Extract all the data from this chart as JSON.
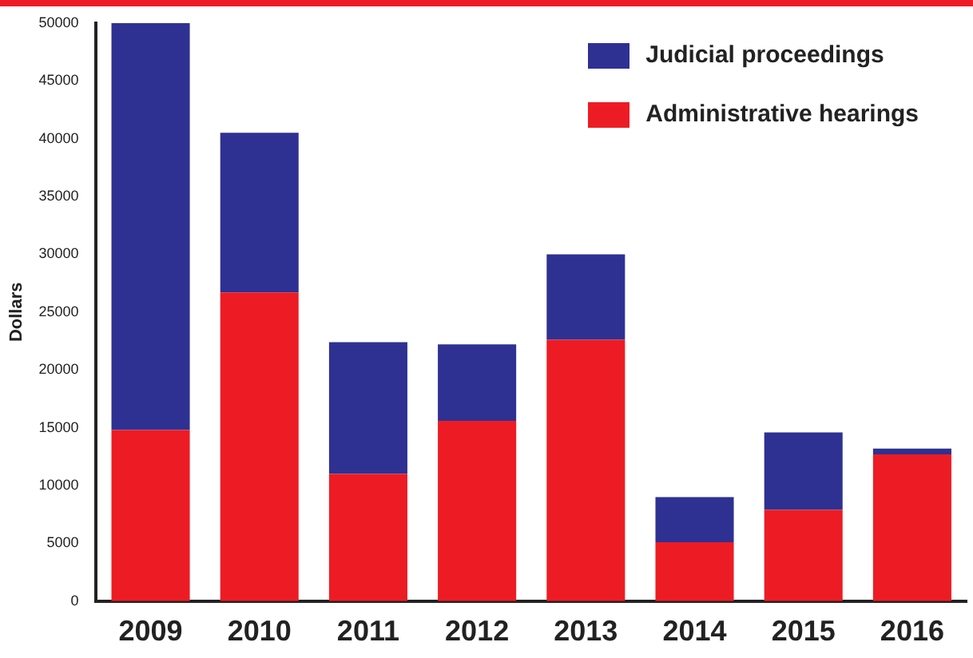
{
  "chart_data": {
    "type": "bar",
    "ylabel": "Dollars",
    "categories": [
      "2009",
      "2010",
      "2011",
      "2012",
      "2013",
      "2014",
      "2015",
      "2016"
    ],
    "stacked": true,
    "series": [
      {
        "name": "Administrative hearings",
        "color": "#ed1c24",
        "values": [
          14800,
          26700,
          11000,
          15600,
          22600,
          5100,
          7900,
          12700
        ]
      },
      {
        "name": "Judicial proceedings",
        "color": "#2e3192",
        "values": [
          35200,
          13800,
          11400,
          6600,
          7400,
          3900,
          6700,
          500
        ]
      }
    ],
    "ylim": [
      0,
      50000
    ],
    "yticks": [
      0,
      5000,
      10000,
      15000,
      20000,
      25000,
      30000,
      35000,
      40000,
      45000,
      50000
    ],
    "grid": false,
    "legend": "top right"
  }
}
